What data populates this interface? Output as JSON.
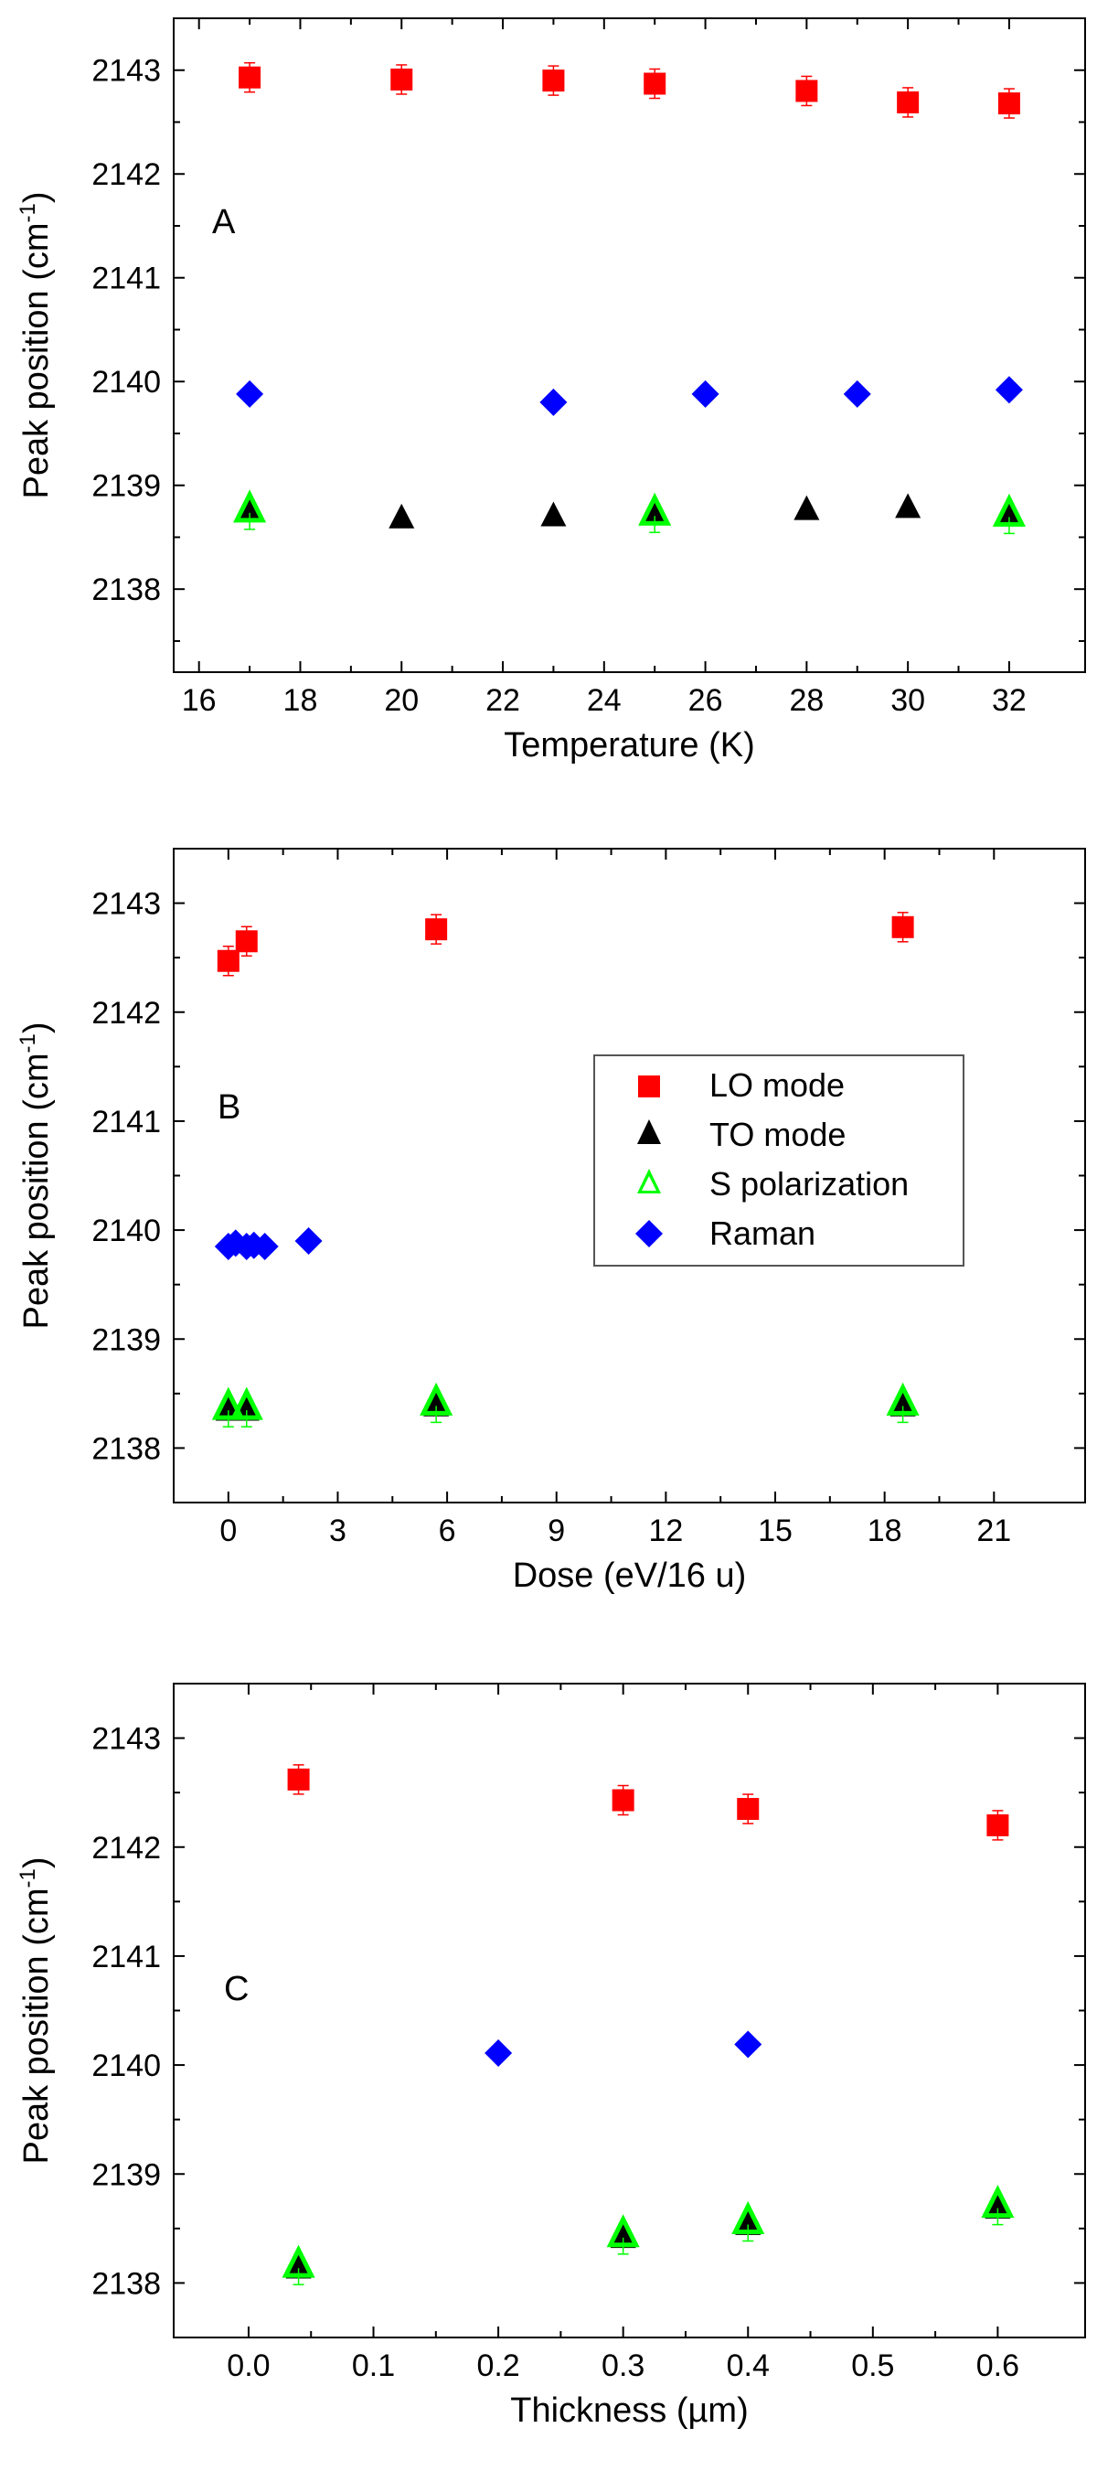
{
  "legend": {
    "lo": "LO mode",
    "to": "TO mode",
    "s": "S polarization",
    "raman": "Raman"
  },
  "colors": {
    "lo": "#ff0000",
    "to": "#000000",
    "s": "#00ff00",
    "raman": "#0000ff",
    "axis": "#000000"
  },
  "chart_data": [
    {
      "type": "scatter",
      "panel_label": "A",
      "xlabel": "Temperature (K)",
      "ylabel": "Peak position (cm",
      "ylabel_sup": "-1",
      "ylabel_close": ")",
      "xlim": [
        15.5,
        33.5
      ],
      "ylim": [
        2137.2,
        2143.5
      ],
      "xticks": [
        16,
        18,
        20,
        22,
        24,
        26,
        28,
        30,
        32
      ],
      "yticks": [
        2138,
        2139,
        2140,
        2141,
        2142,
        2143
      ],
      "series": [
        {
          "name": "LO mode",
          "key": "lo",
          "x": [
            17,
            20,
            23,
            25,
            28,
            30,
            32
          ],
          "y": [
            2142.93,
            2142.91,
            2142.9,
            2142.87,
            2142.8,
            2142.69,
            2142.68
          ]
        },
        {
          "name": "TO mode",
          "key": "to",
          "x": [
            17,
            20,
            23,
            25,
            28,
            30,
            32
          ],
          "y": [
            2138.76,
            2138.7,
            2138.72,
            2138.73,
            2138.78,
            2138.8,
            2138.73
          ]
        },
        {
          "name": "S polarization",
          "key": "s",
          "x": [
            17,
            25,
            32
          ],
          "y": [
            2138.77,
            2138.74,
            2138.73
          ]
        },
        {
          "name": "Raman",
          "key": "raman",
          "x": [
            17,
            23,
            26,
            29,
            32
          ],
          "y": [
            2139.88,
            2139.8,
            2139.88,
            2139.88,
            2139.92
          ]
        }
      ]
    },
    {
      "type": "scatter",
      "panel_label": "B",
      "xlabel": "Dose (eV/16 u)",
      "ylabel": "Peak position (cm",
      "ylabel_sup": "-1",
      "ylabel_close": ")",
      "xlim": [
        -1.5,
        23.5
      ],
      "ylim": [
        2137.5,
        2143.5
      ],
      "xticks": [
        0,
        3,
        6,
        9,
        12,
        15,
        18,
        21
      ],
      "yticks": [
        2138,
        2139,
        2140,
        2141,
        2142,
        2143
      ],
      "series": [
        {
          "name": "LO mode",
          "key": "lo",
          "x": [
            0,
            0.5,
            5.7,
            18.5
          ],
          "y": [
            2142.47,
            2142.65,
            2142.76,
            2142.78
          ]
        },
        {
          "name": "TO mode",
          "key": "to",
          "x": [
            0,
            0.5,
            5.7,
            18.5
          ],
          "y": [
            2138.36,
            2138.36,
            2138.4,
            2138.4
          ]
        },
        {
          "name": "S polarization",
          "key": "s",
          "x": [
            0,
            0.5,
            5.7,
            18.5
          ],
          "y": [
            2138.38,
            2138.38,
            2138.42,
            2138.42
          ]
        },
        {
          "name": "Raman",
          "key": "raman",
          "x": [
            0,
            0.2,
            0.5,
            0.7,
            1.0,
            2.2
          ],
          "y": [
            2139.85,
            2139.88,
            2139.85,
            2139.86,
            2139.85,
            2139.9
          ]
        }
      ]
    },
    {
      "type": "scatter",
      "panel_label": "C",
      "xlabel": "Thickness (µm)",
      "ylabel": "Peak position (cm",
      "ylabel_sup": "-1",
      "ylabel_close": ")",
      "xlim": [
        -0.06,
        0.67
      ],
      "ylim": [
        2137.5,
        2143.5
      ],
      "xticks": [
        0.0,
        0.1,
        0.2,
        0.3,
        0.4,
        0.5,
        0.6
      ],
      "xtick_labels": [
        "0.0",
        "0.1",
        "0.2",
        "0.3",
        "0.4",
        "0.5",
        "0.6"
      ],
      "yticks": [
        2138,
        2139,
        2140,
        2141,
        2142,
        2143
      ],
      "series": [
        {
          "name": "LO mode",
          "key": "lo",
          "x": [
            0.04,
            0.3,
            0.4,
            0.6
          ],
          "y": [
            2142.62,
            2142.43,
            2142.35,
            2142.2
          ]
        },
        {
          "name": "TO mode",
          "key": "to",
          "x": [
            0.04,
            0.3,
            0.4,
            0.6
          ],
          "y": [
            2138.15,
            2138.43,
            2138.55,
            2138.7
          ]
        },
        {
          "name": "S polarization",
          "key": "s",
          "x": [
            0.04,
            0.3,
            0.4,
            0.6
          ],
          "y": [
            2138.17,
            2138.45,
            2138.57,
            2138.72
          ]
        },
        {
          "name": "Raman",
          "key": "raman",
          "x": [
            0.2,
            0.4
          ],
          "y": [
            2140.11,
            2140.19
          ]
        }
      ]
    }
  ]
}
